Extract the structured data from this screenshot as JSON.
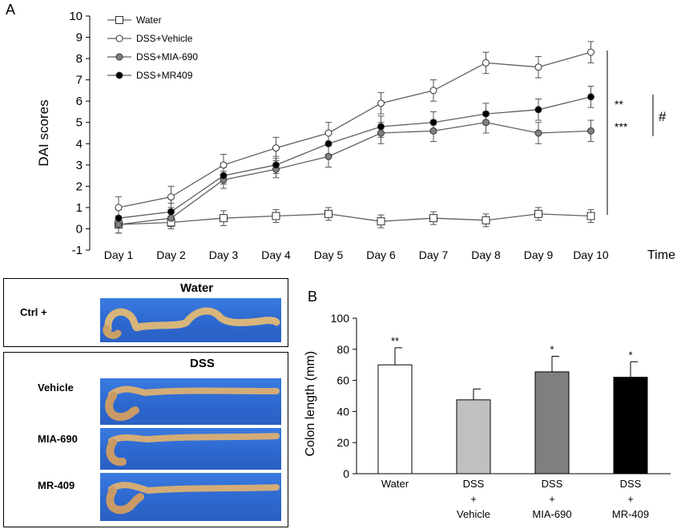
{
  "panels": {
    "a_label": "A",
    "b_label": "B"
  },
  "chart_data": [
    {
      "type": "line",
      "ylabel": "DAI scores",
      "xlabel": "Time",
      "ylim": [
        -1,
        10
      ],
      "yticks": [
        "-1",
        "0",
        "1",
        "2",
        "3",
        "4",
        "5",
        "6",
        "7",
        "8",
        "9",
        "10"
      ],
      "categories": [
        "Day 1",
        "Day 2",
        "Day 3",
        "Day 4",
        "Day 5",
        "Day 6",
        "Day 7",
        "Day 8",
        "Day 9",
        "Day 10"
      ],
      "series": [
        {
          "name": "Water",
          "marker": "open-square",
          "color": "#ffffff",
          "values": [
            0.2,
            0.3,
            0.5,
            0.6,
            0.7,
            0.35,
            0.5,
            0.4,
            0.7,
            0.6
          ],
          "errors": [
            0.4,
            0.3,
            0.35,
            0.3,
            0.3,
            0.3,
            0.3,
            0.3,
            0.3,
            0.3
          ]
        },
        {
          "name": "DSS+Vehicle",
          "marker": "open-circle",
          "color": "#ffffff",
          "values": [
            1.0,
            1.5,
            3.0,
            3.8,
            4.5,
            5.9,
            6.5,
            7.8,
            7.6,
            8.3
          ],
          "errors": [
            0.5,
            0.5,
            0.5,
            0.5,
            0.5,
            0.5,
            0.5,
            0.5,
            0.5,
            0.5
          ]
        },
        {
          "name": "DSS+MIA-690",
          "marker": "filled-circle",
          "color": "#808080",
          "values": [
            0.2,
            0.5,
            2.3,
            2.8,
            3.4,
            4.5,
            4.6,
            5.0,
            4.5,
            4.6
          ],
          "errors": [
            0.4,
            0.4,
            0.4,
            0.4,
            0.5,
            0.5,
            0.5,
            0.5,
            0.5,
            0.5
          ]
        },
        {
          "name": "DSS+MR409",
          "marker": "filled-circle",
          "color": "#000000",
          "values": [
            0.5,
            0.8,
            2.5,
            3.0,
            4.0,
            4.8,
            5.0,
            5.4,
            5.6,
            6.2
          ],
          "errors": [
            0.4,
            0.4,
            0.4,
            0.4,
            0.5,
            0.5,
            0.5,
            0.5,
            0.5,
            0.5
          ]
        }
      ],
      "annotations": {
        "sig1": "**",
        "sig2": "***",
        "sig3": "#"
      }
    },
    {
      "type": "bar",
      "ylabel": "Colon length  (mm)",
      "ylim": [
        0,
        100
      ],
      "yticks": [
        "0",
        "20",
        "40",
        "60",
        "80",
        "100"
      ],
      "categories": [
        {
          "lines": [
            "Water"
          ]
        },
        {
          "lines": [
            "DSS",
            "+",
            "Vehicle"
          ]
        },
        {
          "lines": [
            "DSS",
            "+",
            "MIA-690"
          ]
        },
        {
          "lines": [
            "DSS",
            "+",
            "MR-409"
          ]
        }
      ],
      "values": [
        70,
        47.5,
        65.5,
        62
      ],
      "errors": [
        11,
        7,
        10,
        10
      ],
      "colors": [
        "#ffffff",
        "#c0c0c0",
        "#7f7f7f",
        "#000000"
      ],
      "significance": [
        "**",
        "",
        "*",
        "*"
      ]
    }
  ],
  "photos": {
    "water_title": "Water",
    "dss_title": "DSS",
    "rows": [
      {
        "label": "Ctrl +"
      },
      {
        "label": "Vehicle"
      },
      {
        "label": "MIA-690"
      },
      {
        "label": "MR-409"
      }
    ]
  }
}
